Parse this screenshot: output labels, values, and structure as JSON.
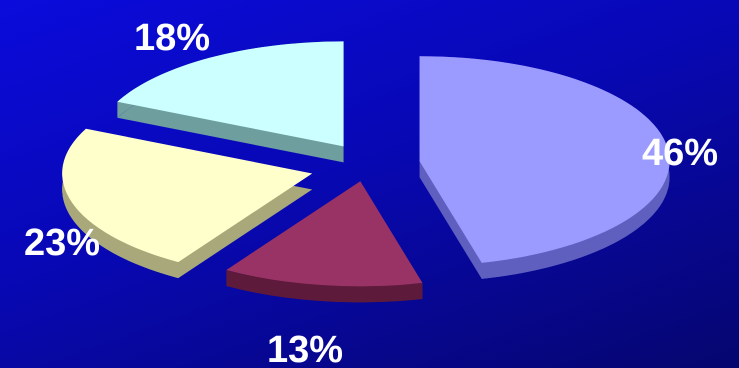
{
  "chart_data": {
    "type": "pie",
    "style": "3d-exploded",
    "title": "",
    "legend": "none",
    "slices": [
      {
        "label": "46%",
        "value": 46,
        "color": "#9a9aff",
        "side_color": "#5f5fbf"
      },
      {
        "label": "13%",
        "value": 13,
        "color": "#993366",
        "side_color": "#5e1a3a"
      },
      {
        "label": "23%",
        "value": 23,
        "color": "#ffffcc",
        "side_color": "#a8a87a"
      },
      {
        "label": "18%",
        "value": 18,
        "color": "#ccffff",
        "side_color": "#6e9e9e"
      }
    ]
  }
}
